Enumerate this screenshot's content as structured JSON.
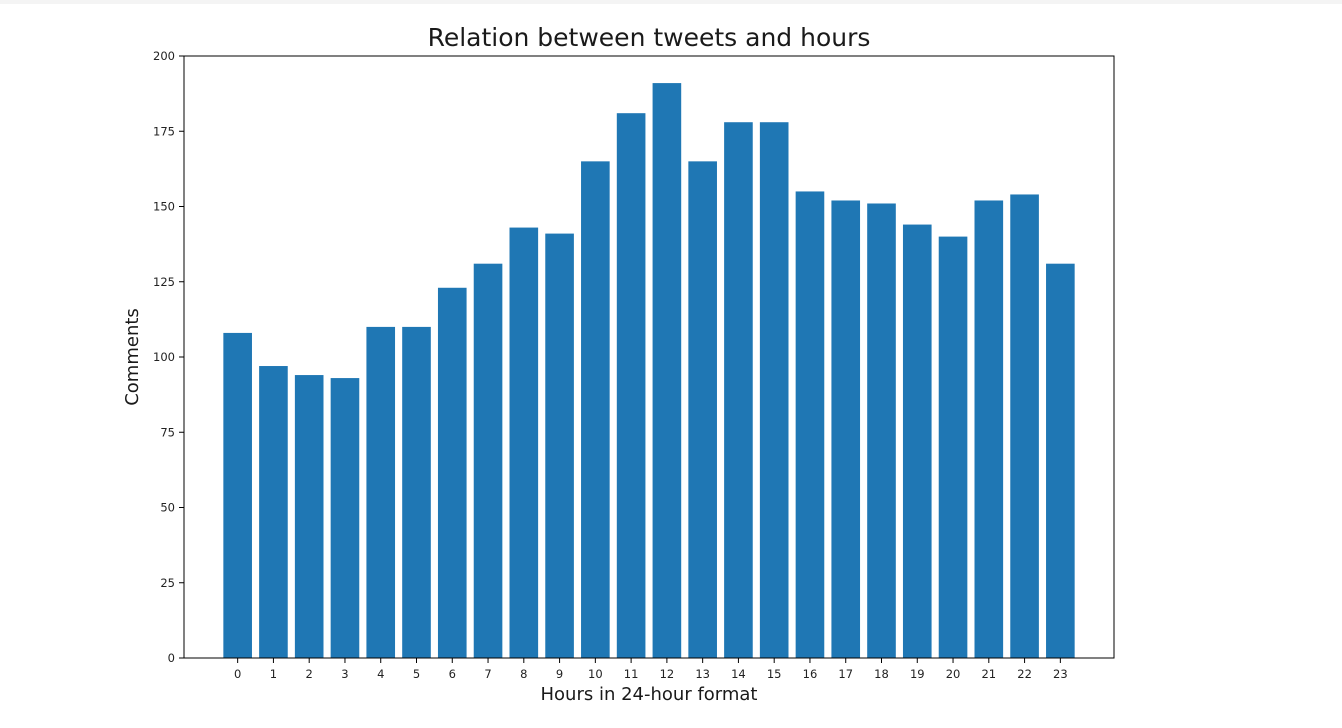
{
  "chart_data": {
    "type": "bar",
    "title": "Relation between tweets and hours",
    "xlabel": "Hours in 24-hour format",
    "ylabel": "Comments",
    "categories": [
      "0",
      "1",
      "2",
      "3",
      "4",
      "5",
      "6",
      "7",
      "8",
      "9",
      "10",
      "11",
      "12",
      "13",
      "14",
      "15",
      "16",
      "17",
      "18",
      "19",
      "20",
      "21",
      "22",
      "23"
    ],
    "values": [
      108,
      97,
      94,
      93,
      110,
      110,
      123,
      131,
      143,
      141,
      165,
      181,
      191,
      165,
      178,
      178,
      155,
      152,
      151,
      144,
      140,
      152,
      154,
      131
    ],
    "ylim": [
      0,
      200
    ],
    "yticks": [
      "0",
      "25",
      "50",
      "75",
      "100",
      "125",
      "150",
      "175",
      "200"
    ],
    "grid": false,
    "legend": "none",
    "bar_color": "#1f77b4"
  }
}
